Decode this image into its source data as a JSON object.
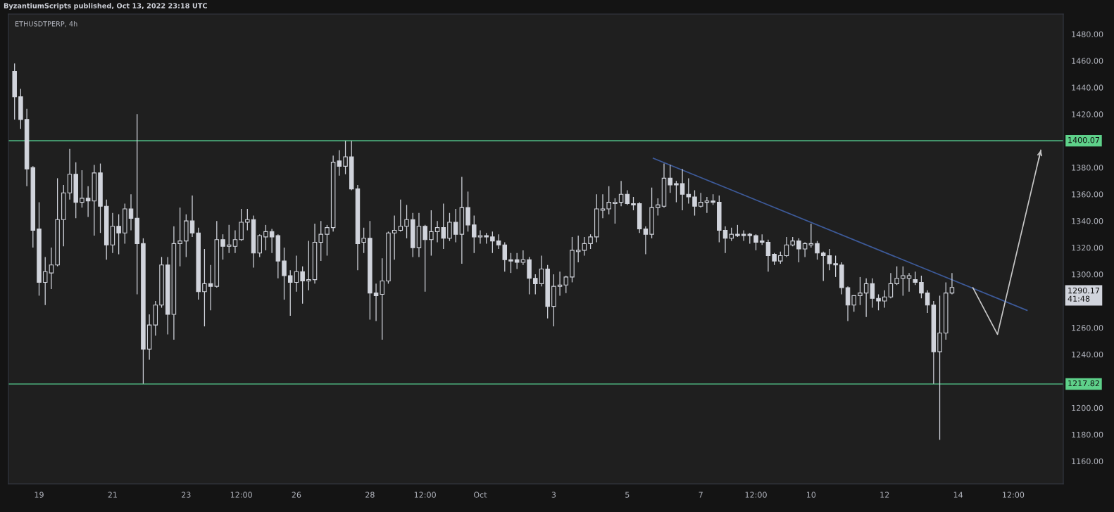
{
  "chart_data": {
    "type": "candlestick",
    "title": "ETHUSDTPERP, 4h",
    "annotations": [
      "ByzantiumScripts published, Oct 13, 2022 23:18 UTC",
      "1290.17\n41:48"
    ],
    "color": "#d1d4dc",
    "x": [
      "2022-09-18T08:00",
      "2022-09-18T12:00",
      "2022-09-18T16:00",
      "2022-09-18T20:00",
      "2022-09-19T00:00",
      "2022-09-19T04:00",
      "2022-09-19T08:00",
      "2022-09-19T12:00",
      "2022-09-19T16:00",
      "2022-09-19T20:00",
      "2022-09-20T00:00",
      "2022-09-20T04:00",
      "2022-09-20T08:00",
      "2022-09-20T12:00",
      "2022-09-20T16:00",
      "2022-09-20T20:00",
      "2022-09-21T00:00",
      "2022-09-21T04:00",
      "2022-09-21T08:00",
      "2022-09-21T12:00",
      "2022-09-21T16:00",
      "2022-09-21T20:00",
      "2022-09-22T00:00",
      "2022-09-22T04:00",
      "2022-09-22T08:00",
      "2022-09-22T12:00",
      "2022-09-22T16:00",
      "2022-09-22T20:00",
      "2022-09-23T00:00",
      "2022-09-23T04:00",
      "2022-09-23T08:00",
      "2022-09-23T12:00",
      "2022-09-23T16:00",
      "2022-09-23T20:00",
      "2022-09-24T00:00",
      "2022-09-24T04:00",
      "2022-09-24T08:00",
      "2022-09-24T12:00",
      "2022-09-24T16:00",
      "2022-09-24T20:00",
      "2022-09-25T00:00",
      "2022-09-25T04:00",
      "2022-09-25T08:00",
      "2022-09-25T12:00",
      "2022-09-25T16:00",
      "2022-09-25T20:00",
      "2022-09-26T00:00",
      "2022-09-26T04:00",
      "2022-09-26T08:00",
      "2022-09-26T12:00",
      "2022-09-26T16:00",
      "2022-09-26T20:00",
      "2022-09-27T00:00",
      "2022-09-27T04:00",
      "2022-09-27T08:00",
      "2022-09-27T12:00",
      "2022-09-27T16:00",
      "2022-09-27T20:00",
      "2022-09-28T00:00",
      "2022-09-28T04:00",
      "2022-09-28T08:00",
      "2022-09-28T12:00",
      "2022-09-28T16:00",
      "2022-09-28T20:00",
      "2022-09-29T00:00",
      "2022-09-29T04:00",
      "2022-09-29T08:00",
      "2022-09-29T12:00",
      "2022-09-29T16:00",
      "2022-09-29T20:00",
      "2022-09-30T00:00",
      "2022-09-30T04:00",
      "2022-09-30T08:00",
      "2022-09-30T12:00",
      "2022-09-30T16:00",
      "2022-09-30T20:00",
      "2022-10-01T00:00",
      "2022-10-01T04:00",
      "2022-10-01T08:00",
      "2022-10-01T12:00",
      "2022-10-01T16:00",
      "2022-10-01T20:00",
      "2022-10-02T00:00",
      "2022-10-02T04:00",
      "2022-10-02T08:00",
      "2022-10-02T12:00",
      "2022-10-02T16:00",
      "2022-10-02T20:00",
      "2022-10-03T00:00",
      "2022-10-03T04:00",
      "2022-10-03T08:00",
      "2022-10-03T12:00",
      "2022-10-03T16:00",
      "2022-10-03T20:00",
      "2022-10-04T00:00",
      "2022-10-04T04:00",
      "2022-10-04T08:00",
      "2022-10-04T12:00",
      "2022-10-04T16:00",
      "2022-10-04T20:00",
      "2022-10-05T00:00",
      "2022-10-05T04:00",
      "2022-10-05T08:00",
      "2022-10-05T12:00",
      "2022-10-05T16:00",
      "2022-10-05T20:00",
      "2022-10-06T00:00",
      "2022-10-06T04:00",
      "2022-10-06T08:00",
      "2022-10-06T12:00",
      "2022-10-06T16:00",
      "2022-10-06T20:00",
      "2022-10-07T00:00",
      "2022-10-07T04:00",
      "2022-10-07T08:00",
      "2022-10-07T12:00",
      "2022-10-07T16:00",
      "2022-10-07T20:00",
      "2022-10-08T00:00",
      "2022-10-08T04:00",
      "2022-10-08T08:00",
      "2022-10-08T12:00",
      "2022-10-08T16:00",
      "2022-10-08T20:00",
      "2022-10-09T00:00",
      "2022-10-09T04:00",
      "2022-10-09T08:00",
      "2022-10-09T12:00",
      "2022-10-09T16:00",
      "2022-10-09T20:00",
      "2022-10-10T00:00",
      "2022-10-10T04:00",
      "2022-10-10T08:00",
      "2022-10-10T12:00",
      "2022-10-10T16:00",
      "2022-10-10T20:00",
      "2022-10-11T00:00",
      "2022-10-11T04:00",
      "2022-10-11T08:00",
      "2022-10-11T12:00",
      "2022-10-11T16:00",
      "2022-10-11T20:00",
      "2022-10-12T00:00",
      "2022-10-12T04:00",
      "2022-10-12T08:00",
      "2022-10-12T12:00",
      "2022-10-12T16:00",
      "2022-10-12T20:00",
      "2022-10-13T00:00",
      "2022-10-13T04:00",
      "2022-10-13T08:00",
      "2022-10-13T12:00",
      "2022-10-13T16:00",
      "2022-10-13T20:00"
    ],
    "ohlc": [
      [
        1452,
        1458,
        1416,
        1433
      ],
      [
        1433,
        1439,
        1409,
        1416
      ],
      [
        1416,
        1424,
        1366,
        1379
      ],
      [
        1380,
        1381,
        1320,
        1333
      ],
      [
        1334,
        1354,
        1284,
        1294
      ],
      [
        1294,
        1313,
        1277,
        1302
      ],
      [
        1301,
        1320,
        1289,
        1307
      ],
      [
        1307,
        1372,
        1306,
        1341
      ],
      [
        1341,
        1367,
        1321,
        1361
      ],
      [
        1361,
        1394,
        1356,
        1375
      ],
      [
        1375,
        1384,
        1342,
        1354
      ],
      [
        1354,
        1378,
        1350,
        1357
      ],
      [
        1357,
        1366,
        1343,
        1355
      ],
      [
        1355,
        1382,
        1329,
        1376
      ],
      [
        1376,
        1383,
        1331,
        1351
      ],
      [
        1351,
        1356,
        1311,
        1322
      ],
      [
        1322,
        1346,
        1316,
        1336
      ],
      [
        1336,
        1345,
        1315,
        1331
      ],
      [
        1331,
        1353,
        1323,
        1349
      ],
      [
        1349,
        1360,
        1333,
        1342
      ],
      [
        1342,
        1420,
        1285,
        1323
      ],
      [
        1323,
        1327,
        1218,
        1244
      ],
      [
        1244,
        1270,
        1236,
        1262
      ],
      [
        1262,
        1280,
        1254,
        1277
      ],
      [
        1277,
        1313,
        1275,
        1307
      ],
      [
        1307,
        1313,
        1255,
        1270
      ],
      [
        1270,
        1336,
        1251,
        1323
      ],
      [
        1323,
        1350,
        1306,
        1325
      ],
      [
        1325,
        1345,
        1313,
        1340
      ],
      [
        1340,
        1359,
        1328,
        1331
      ],
      [
        1331,
        1335,
        1281,
        1287
      ],
      [
        1287,
        1319,
        1261,
        1293
      ],
      [
        1293,
        1307,
        1273,
        1291
      ],
      [
        1291,
        1340,
        1290,
        1326
      ],
      [
        1326,
        1330,
        1311,
        1321
      ],
      [
        1321,
        1337,
        1316,
        1322
      ],
      [
        1321,
        1333,
        1316,
        1326
      ],
      [
        1326,
        1349,
        1325,
        1339
      ],
      [
        1339,
        1349,
        1333,
        1341
      ],
      [
        1341,
        1344,
        1305,
        1316
      ],
      [
        1316,
        1330,
        1313,
        1329
      ],
      [
        1328,
        1337,
        1318,
        1332
      ],
      [
        1332,
        1334,
        1316,
        1328
      ],
      [
        1329,
        1330,
        1297,
        1310
      ],
      [
        1310,
        1320,
        1281,
        1299
      ],
      [
        1299,
        1303,
        1269,
        1294
      ],
      [
        1294,
        1314,
        1287,
        1302
      ],
      [
        1302,
        1306,
        1278,
        1295
      ],
      [
        1295,
        1325,
        1288,
        1296
      ],
      [
        1296,
        1338,
        1293,
        1324
      ],
      [
        1324,
        1340,
        1310,
        1330
      ],
      [
        1330,
        1337,
        1314,
        1335
      ],
      [
        1335,
        1389,
        1332,
        1384
      ],
      [
        1385,
        1393,
        1374,
        1381
      ],
      [
        1381,
        1400,
        1375,
        1388
      ],
      [
        1388,
        1400,
        1363,
        1364
      ],
      [
        1364,
        1367,
        1303,
        1323
      ],
      [
        1324,
        1335,
        1316,
        1327
      ],
      [
        1327,
        1340,
        1266,
        1286
      ],
      [
        1286,
        1293,
        1265,
        1284
      ],
      [
        1285,
        1312,
        1251,
        1295
      ],
      [
        1295,
        1332,
        1293,
        1331
      ],
      [
        1331,
        1344,
        1311,
        1333
      ],
      [
        1333,
        1356,
        1332,
        1336
      ],
      [
        1336,
        1352,
        1327,
        1341
      ],
      [
        1341,
        1346,
        1313,
        1320
      ],
      [
        1320,
        1346,
        1313,
        1336
      ],
      [
        1336,
        1337,
        1287,
        1326
      ],
      [
        1326,
        1348,
        1314,
        1332
      ],
      [
        1332,
        1340,
        1324,
        1335
      ],
      [
        1335,
        1353,
        1319,
        1327
      ],
      [
        1327,
        1346,
        1325,
        1339
      ],
      [
        1339,
        1349,
        1324,
        1330
      ],
      [
        1330,
        1373,
        1308,
        1350
      ],
      [
        1350,
        1362,
        1332,
        1337
      ],
      [
        1337,
        1344,
        1316,
        1328
      ],
      [
        1328,
        1333,
        1323,
        1329
      ],
      [
        1329,
        1331,
        1323,
        1328
      ],
      [
        1328,
        1332,
        1316,
        1325
      ],
      [
        1325,
        1330,
        1319,
        1322
      ],
      [
        1322,
        1324,
        1302,
        1311
      ],
      [
        1311,
        1316,
        1301,
        1310
      ],
      [
        1311,
        1316,
        1304,
        1309
      ],
      [
        1309,
        1318,
        1307,
        1311
      ],
      [
        1311,
        1313,
        1285,
        1297
      ],
      [
        1297,
        1300,
        1285,
        1293
      ],
      [
        1293,
        1314,
        1291,
        1304
      ],
      [
        1304,
        1307,
        1267,
        1276
      ],
      [
        1276,
        1300,
        1261,
        1291
      ],
      [
        1291,
        1302,
        1284,
        1292
      ],
      [
        1292,
        1299,
        1286,
        1298
      ],
      [
        1298,
        1328,
        1294,
        1318
      ],
      [
        1317,
        1329,
        1309,
        1318
      ],
      [
        1318,
        1328,
        1314,
        1323
      ],
      [
        1323,
        1330,
        1319,
        1328
      ],
      [
        1328,
        1360,
        1324,
        1349
      ],
      [
        1348,
        1360,
        1342,
        1349
      ],
      [
        1349,
        1366,
        1345,
        1354
      ],
      [
        1353,
        1357,
        1338,
        1354
      ],
      [
        1354,
        1370,
        1351,
        1360
      ],
      [
        1360,
        1363,
        1352,
        1353
      ],
      [
        1353,
        1358,
        1348,
        1352
      ],
      [
        1353,
        1354,
        1331,
        1334
      ],
      [
        1334,
        1336,
        1315,
        1330
      ],
      [
        1330,
        1365,
        1327,
        1350
      ],
      [
        1350,
        1357,
        1344,
        1352
      ],
      [
        1351,
        1383,
        1350,
        1372
      ],
      [
        1372,
        1382,
        1361,
        1367
      ],
      [
        1368,
        1370,
        1354,
        1367
      ],
      [
        1368,
        1379,
        1348,
        1360
      ],
      [
        1360,
        1372,
        1353,
        1358
      ],
      [
        1358,
        1363,
        1344,
        1351
      ],
      [
        1351,
        1361,
        1350,
        1354
      ],
      [
        1354,
        1358,
        1346,
        1355
      ],
      [
        1355,
        1360,
        1352,
        1354
      ],
      [
        1354,
        1359,
        1324,
        1333
      ],
      [
        1333,
        1336,
        1316,
        1327
      ],
      [
        1327,
        1335,
        1325,
        1330
      ],
      [
        1330,
        1337,
        1328,
        1329
      ],
      [
        1330,
        1333,
        1325,
        1329
      ],
      [
        1330,
        1331,
        1323,
        1329
      ],
      [
        1329,
        1330,
        1318,
        1324
      ],
      [
        1325,
        1330,
        1322,
        1324
      ],
      [
        1324,
        1326,
        1302,
        1314
      ],
      [
        1315,
        1316,
        1307,
        1310
      ],
      [
        1310,
        1317,
        1308,
        1314
      ],
      [
        1314,
        1328,
        1313,
        1322
      ],
      [
        1322,
        1328,
        1321,
        1325
      ],
      [
        1325,
        1327,
        1309,
        1319
      ],
      [
        1319,
        1324,
        1313,
        1323
      ],
      [
        1322,
        1338,
        1320,
        1323
      ],
      [
        1323,
        1325,
        1311,
        1316
      ],
      [
        1316,
        1317,
        1295,
        1314
      ],
      [
        1314,
        1319,
        1303,
        1308
      ],
      [
        1308,
        1314,
        1298,
        1307
      ],
      [
        1307,
        1309,
        1285,
        1290
      ],
      [
        1290,
        1291,
        1265,
        1277
      ],
      [
        1277,
        1284,
        1272,
        1284
      ],
      [
        1284,
        1298,
        1277,
        1286
      ],
      [
        1286,
        1297,
        1268,
        1293
      ],
      [
        1293,
        1297,
        1275,
        1282
      ],
      [
        1282,
        1285,
        1273,
        1280
      ],
      [
        1280,
        1288,
        1275,
        1283
      ],
      [
        1283,
        1301,
        1282,
        1293
      ],
      [
        1293,
        1306,
        1292,
        1297
      ],
      [
        1297,
        1306,
        1284,
        1299
      ],
      [
        1297,
        1301,
        1287,
        1299
      ],
      [
        1296,
        1302,
        1292,
        1294
      ],
      [
        1294,
        1299,
        1282,
        1286
      ],
      [
        1286,
        1288,
        1271,
        1277
      ],
      [
        1277,
        1280,
        1218,
        1242
      ],
      [
        1242,
        1284,
        1176,
        1256
      ],
      [
        1256,
        1294,
        1251,
        1286
      ],
      [
        1286,
        1301,
        1285,
        1290.17
      ]
    ],
    "series": [
      {
        "type": "line",
        "color": "#3d5a99",
        "x": [
          "2022-10-05T17:00",
          "2022-10-15T21:00"
        ],
        "values": [
          1387,
          1273
        ]
      }
    ],
    "ref_lines": [
      {
        "axis": "y",
        "value": 1400.07,
        "label": "1400.07",
        "color": "#4caf7d"
      },
      {
        "axis": "y",
        "value": 1217.82,
        "label": "1217.82",
        "color": "#4caf7d"
      }
    ],
    "xlim": [
      "2022-09-18T04:00",
      "2022-10-16T20:40"
    ],
    "xticks": [
      {
        "value": "2022-09-19",
        "label": "19"
      },
      {
        "value": "2022-09-21",
        "label": "21"
      },
      {
        "value": "2022-09-23",
        "label": "23"
      },
      {
        "value": "2022-09-24T12:00",
        "label": "12:00"
      },
      {
        "value": "2022-09-26",
        "label": "26"
      },
      {
        "value": "2022-09-28",
        "label": "28"
      },
      {
        "value": "2022-09-29T12:00",
        "label": "12:00"
      },
      {
        "value": "2022-10-01",
        "label": "Oct"
      },
      {
        "value": "2022-10-03",
        "label": "3"
      },
      {
        "value": "2022-10-05",
        "label": "5"
      },
      {
        "value": "2022-10-07",
        "label": "7"
      },
      {
        "value": "2022-10-08T12:00",
        "label": "12:00"
      },
      {
        "value": "2022-10-10",
        "label": "10"
      },
      {
        "value": "2022-10-12",
        "label": "12"
      },
      {
        "value": "2022-10-14",
        "label": "14"
      },
      {
        "value": "2022-10-15T12:00",
        "label": "12:00"
      }
    ],
    "ylim": [
      1143,
      1495
    ],
    "yticks": [
      {
        "value": 1160,
        "label": "1160.00"
      },
      {
        "value": 1180,
        "label": "1180.00"
      },
      {
        "value": 1200,
        "label": "1200.00"
      },
      {
        "value": 1240,
        "label": "1240.00"
      },
      {
        "value": 1260,
        "label": "1260.00"
      },
      {
        "value": 1300,
        "label": "1300.00"
      },
      {
        "value": 1320,
        "label": "1320.00"
      },
      {
        "value": 1340,
        "label": "1340.00"
      },
      {
        "value": 1360,
        "label": "1360.00"
      },
      {
        "value": 1380,
        "label": "1380.00"
      },
      {
        "value": 1420,
        "label": "1420.00"
      },
      {
        "value": 1440,
        "label": "1440.00"
      },
      {
        "value": 1460,
        "label": "1460.00"
      },
      {
        "value": 1480,
        "label": "1480.00"
      }
    ],
    "grid": false,
    "marker": "none",
    "line_style": "solid"
  }
}
